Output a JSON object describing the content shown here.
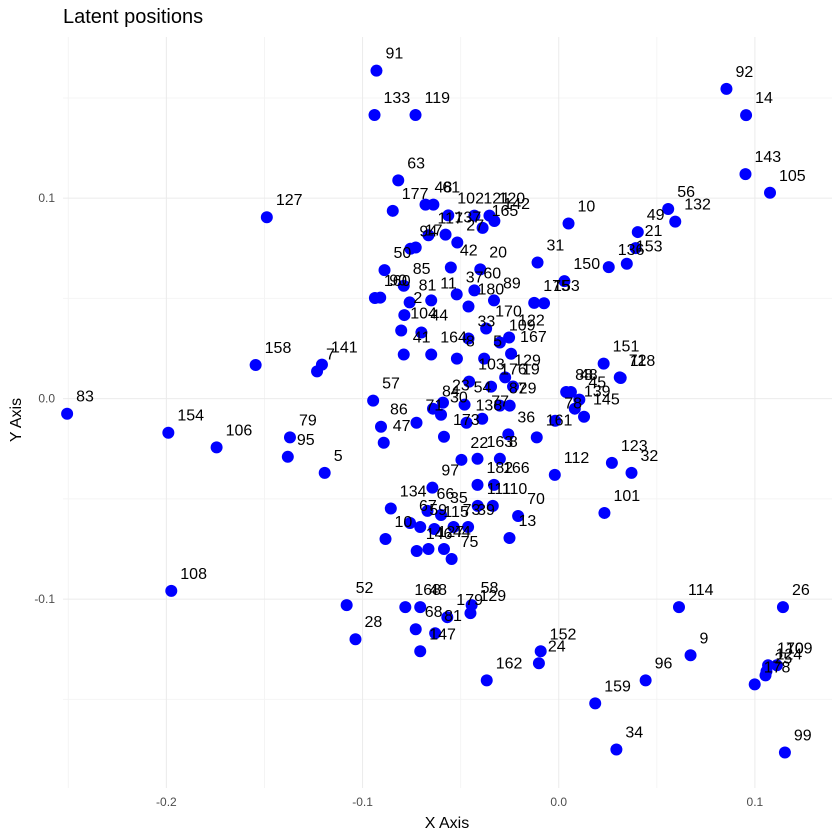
{
  "chart_data": {
    "type": "scatter",
    "title": "Latent positions",
    "xlabel": "X Axis",
    "ylabel": "Y Axis",
    "xlim": [
      -0.2527,
      0.1393
    ],
    "ylim": [
      -0.1942,
      0.1804
    ],
    "x_ticks": [
      -0.2,
      -0.1,
      0.0,
      0.1
    ],
    "y_ticks": [
      -0.1,
      0.0,
      0.1
    ],
    "x_tick_labels": [
      "-0.2",
      "-0.1",
      "0.0",
      "0.1"
    ],
    "y_tick_labels": [
      "-0.1",
      "0.0",
      "0.1"
    ],
    "grid": true,
    "point_color": "#0000ff",
    "points": [
      {
        "label": "91",
        "x": -0.0929,
        "y": 0.1636
      },
      {
        "label": "133",
        "x": -0.0939,
        "y": 0.1415
      },
      {
        "label": "119",
        "x": -0.073,
        "y": 0.1415
      },
      {
        "label": "92",
        "x": 0.0855,
        "y": 0.1545
      },
      {
        "label": "14",
        "x": 0.0955,
        "y": 0.1414
      },
      {
        "label": "143",
        "x": 0.0952,
        "y": 0.112
      },
      {
        "label": "105",
        "x": 0.1077,
        "y": 0.1027
      },
      {
        "label": "63",
        "x": -0.0818,
        "y": 0.1089
      },
      {
        "label": "127",
        "x": -0.1488,
        "y": 0.0905
      },
      {
        "label": "56",
        "x": 0.0558,
        "y": 0.0946
      },
      {
        "label": "132",
        "x": 0.0594,
        "y": 0.0883
      },
      {
        "label": "49",
        "x": 0.0403,
        "y": 0.0831
      },
      {
        "label": "21",
        "x": 0.0392,
        "y": 0.0751
      },
      {
        "label": "10",
        "x": 0.005,
        "y": 0.0874
      },
      {
        "label": "31",
        "x": -0.0108,
        "y": 0.0679
      },
      {
        "label": "136",
        "x": 0.0255,
        "y": 0.0656
      },
      {
        "label": "153",
        "x": 0.0347,
        "y": 0.0673
      },
      {
        "label": "177",
        "x": -0.0846,
        "y": 0.0937
      },
      {
        "label": "48",
        "x": -0.0679,
        "y": 0.0968
      },
      {
        "label": "61",
        "x": -0.0639,
        "y": 0.0968
      },
      {
        "label": "102",
        "x": -0.0563,
        "y": 0.0914
      },
      {
        "label": "121",
        "x": -0.043,
        "y": 0.0913
      },
      {
        "label": "120",
        "x": -0.0353,
        "y": 0.0913
      },
      {
        "label": "142",
        "x": -0.0328,
        "y": 0.0886
      },
      {
        "label": "165",
        "x": -0.0388,
        "y": 0.0852
      },
      {
        "label": "17",
        "x": -0.0729,
        "y": 0.0754
      },
      {
        "label": "94",
        "x": -0.0756,
        "y": 0.0748
      },
      {
        "label": "117",
        "x": -0.0664,
        "y": 0.0815
      },
      {
        "label": "137",
        "x": -0.0577,
        "y": 0.0818
      },
      {
        "label": "27",
        "x": -0.0517,
        "y": 0.0779
      },
      {
        "label": "42",
        "x": -0.055,
        "y": 0.0654
      },
      {
        "label": "20",
        "x": -0.04,
        "y": 0.0645
      },
      {
        "label": "50",
        "x": -0.0888,
        "y": 0.0641
      },
      {
        "label": "90",
        "x": -0.091,
        "y": 0.0504
      },
      {
        "label": "160",
        "x": -0.0937,
        "y": 0.0502
      },
      {
        "label": "85",
        "x": -0.079,
        "y": 0.0563
      },
      {
        "label": "150",
        "x": 0.0029,
        "y": 0.0586
      },
      {
        "label": "175",
        "x": -0.0125,
        "y": 0.0478
      },
      {
        "label": "153",
        "x": -0.0075,
        "y": 0.0476
      },
      {
        "label": "158",
        "x": -0.1545,
        "y": 0.0168
      },
      {
        "label": "141",
        "x": -0.1207,
        "y": 0.017
      },
      {
        "label": "7",
        "x": -0.1232,
        "y": 0.0136
      },
      {
        "label": "151",
        "x": 0.0229,
        "y": 0.0175
      },
      {
        "label": "72",
        "x": 0.0311,
        "y": 0.0106
      },
      {
        "label": "118",
        "x": 0.0316,
        "y": 0.0103
      },
      {
        "label": "122",
        "x": -0.0253,
        "y": 0.0305
      },
      {
        "label": "167",
        "x": -0.0243,
        "y": 0.0224
      },
      {
        "label": "83",
        "x": -0.2506,
        "y": -0.0075
      },
      {
        "label": "154",
        "x": -0.199,
        "y": -0.017
      },
      {
        "label": "106",
        "x": -0.1744,
        "y": -0.0243
      },
      {
        "label": "79",
        "x": -0.137,
        "y": -0.0193
      },
      {
        "label": "95",
        "x": -0.1381,
        "y": -0.029
      },
      {
        "label": "5",
        "x": -0.1193,
        "y": -0.037
      },
      {
        "label": "57",
        "x": -0.0946,
        "y": -0.001
      },
      {
        "label": "86",
        "x": -0.0906,
        "y": -0.014
      },
      {
        "label": "47",
        "x": -0.0892,
        "y": -0.022
      },
      {
        "label": "19",
        "x": -0.0233,
        "y": 0.0061
      },
      {
        "label": "88",
        "x": 0.0038,
        "y": 0.0033
      },
      {
        "label": "48",
        "x": 0.0062,
        "y": 0.0033
      },
      {
        "label": "45",
        "x": 0.0105,
        "y": -0.0005
      },
      {
        "label": "139",
        "x": 0.0082,
        "y": -0.005
      },
      {
        "label": "145",
        "x": 0.0129,
        "y": -0.009
      },
      {
        "label": "78",
        "x": -0.0018,
        "y": -0.011
      },
      {
        "label": "36",
        "x": -0.0257,
        "y": -0.0178
      },
      {
        "label": "161",
        "x": -0.0112,
        "y": -0.0193
      },
      {
        "label": "112",
        "x": -0.002,
        "y": -0.038
      },
      {
        "label": "123",
        "x": 0.0271,
        "y": -0.032
      },
      {
        "label": "32",
        "x": 0.0371,
        "y": -0.037
      },
      {
        "label": "101",
        "x": 0.0233,
        "y": -0.057
      },
      {
        "label": "163",
        "x": -0.0414,
        "y": -0.03
      },
      {
        "label": "8",
        "x": -0.03,
        "y": -0.03
      },
      {
        "label": "22",
        "x": -0.0496,
        "y": -0.0305
      },
      {
        "label": "97",
        "x": -0.0644,
        "y": -0.0444
      },
      {
        "label": "182",
        "x": -0.0414,
        "y": -0.043
      },
      {
        "label": "166",
        "x": -0.033,
        "y": -0.043
      },
      {
        "label": "110",
        "x": -0.0336,
        "y": -0.0535
      },
      {
        "label": "111",
        "x": -0.0413,
        "y": -0.0535
      },
      {
        "label": "70",
        "x": -0.0207,
        "y": -0.0585
      },
      {
        "label": "134",
        "x": -0.0856,
        "y": -0.0548
      },
      {
        "label": "66",
        "x": -0.0669,
        "y": -0.056
      },
      {
        "label": "35",
        "x": -0.06,
        "y": -0.058
      },
      {
        "label": "67",
        "x": -0.0758,
        "y": -0.062
      },
      {
        "label": "59",
        "x": -0.0706,
        "y": -0.064
      },
      {
        "label": "115",
        "x": -0.0634,
        "y": -0.065
      },
      {
        "label": "73",
        "x": -0.0536,
        "y": -0.064
      },
      {
        "label": "39",
        "x": -0.0462,
        "y": -0.064
      },
      {
        "label": "10",
        "x": -0.0883,
        "y": -0.07
      },
      {
        "label": "13",
        "x": -0.0251,
        "y": -0.0695
      },
      {
        "label": "146",
        "x": -0.0724,
        "y": -0.076
      },
      {
        "label": "127",
        "x": -0.0664,
        "y": -0.075
      },
      {
        "label": "44",
        "x": -0.0585,
        "y": -0.075
      },
      {
        "label": "75",
        "x": -0.0546,
        "y": -0.08
      },
      {
        "label": "108",
        "x": -0.1975,
        "y": -0.0959
      },
      {
        "label": "52",
        "x": -0.1081,
        "y": -0.103
      },
      {
        "label": "28",
        "x": -0.1036,
        "y": -0.12
      },
      {
        "label": "168",
        "x": -0.0782,
        "y": -0.104
      },
      {
        "label": "48",
        "x": -0.0706,
        "y": -0.104
      },
      {
        "label": "58",
        "x": -0.0444,
        "y": -0.103
      },
      {
        "label": "129",
        "x": -0.045,
        "y": -0.107
      },
      {
        "label": "179",
        "x": -0.0568,
        "y": -0.109
      },
      {
        "label": "68",
        "x": -0.0729,
        "y": -0.115
      },
      {
        "label": "81",
        "x": -0.063,
        "y": -0.117
      },
      {
        "label": "147",
        "x": -0.0706,
        "y": -0.126
      },
      {
        "label": "162",
        "x": -0.0367,
        "y": -0.1405
      },
      {
        "label": "152",
        "x": -0.0092,
        "y": -0.126
      },
      {
        "label": "24",
        "x": -0.0101,
        "y": -0.132
      },
      {
        "label": "114",
        "x": 0.0613,
        "y": -0.104
      },
      {
        "label": "26",
        "x": 0.1143,
        "y": -0.104
      },
      {
        "label": "9",
        "x": 0.0672,
        "y": -0.128
      },
      {
        "label": "96",
        "x": 0.0443,
        "y": -0.1405
      },
      {
        "label": "159",
        "x": 0.0186,
        "y": -0.152
      },
      {
        "label": "34",
        "x": 0.0294,
        "y": -0.175
      },
      {
        "label": "99",
        "x": 0.1153,
        "y": -0.1765
      },
      {
        "label": "170",
        "x": 0.1067,
        "y": -0.133
      },
      {
        "label": "109",
        "x": 0.1112,
        "y": -0.133
      },
      {
        "label": "124",
        "x": 0.1059,
        "y": -0.136
      },
      {
        "label": "25",
        "x": 0.1054,
        "y": -0.138
      },
      {
        "label": "178",
        "x": 0.0999,
        "y": -0.1425
      },
      {
        "label": "44",
        "x": -0.07,
        "y": 0.033
      },
      {
        "label": "104",
        "x": -0.0803,
        "y": 0.034
      },
      {
        "label": "2",
        "x": -0.0787,
        "y": 0.0417
      },
      {
        "label": "81",
        "x": -0.076,
        "y": 0.048
      },
      {
        "label": "11",
        "x": -0.065,
        "y": 0.049
      },
      {
        "label": "23",
        "x": -0.059,
        "y": -0.002
      },
      {
        "label": "84",
        "x": -0.0641,
        "y": -0.005
      },
      {
        "label": "71",
        "x": -0.0725,
        "y": -0.012
      },
      {
        "label": "30",
        "x": -0.06,
        "y": -0.008
      },
      {
        "label": "173",
        "x": -0.0585,
        "y": -0.019
      },
      {
        "label": "103",
        "x": -0.0457,
        "y": 0.0085
      },
      {
        "label": "176",
        "x": -0.0345,
        "y": 0.006
      },
      {
        "label": "129",
        "x": -0.0273,
        "y": 0.0106
      },
      {
        "label": "87",
        "x": -0.03,
        "y": -0.0035
      },
      {
        "label": "29",
        "x": -0.025,
        "y": -0.0035
      },
      {
        "label": "164",
        "x": -0.065,
        "y": 0.022
      },
      {
        "label": "8",
        "x": -0.0519,
        "y": 0.02
      },
      {
        "label": "5",
        "x": -0.038,
        "y": 0.02
      },
      {
        "label": "109",
        "x": -0.03,
        "y": 0.028
      },
      {
        "label": "33",
        "x": -0.046,
        "y": 0.03
      },
      {
        "label": "37",
        "x": -0.052,
        "y": 0.052
      },
      {
        "label": "89",
        "x": -0.033,
        "y": 0.049
      },
      {
        "label": "180",
        "x": -0.046,
        "y": 0.046
      },
      {
        "label": "60",
        "x": -0.043,
        "y": 0.054
      },
      {
        "label": "41",
        "x": -0.079,
        "y": 0.022
      },
      {
        "label": "138",
        "x": -0.047,
        "y": -0.012
      },
      {
        "label": "77",
        "x": -0.039,
        "y": -0.01
      },
      {
        "label": "54",
        "x": -0.048,
        "y": -0.003
      },
      {
        "label": "170",
        "x": -0.037,
        "y": 0.035
      }
    ]
  }
}
